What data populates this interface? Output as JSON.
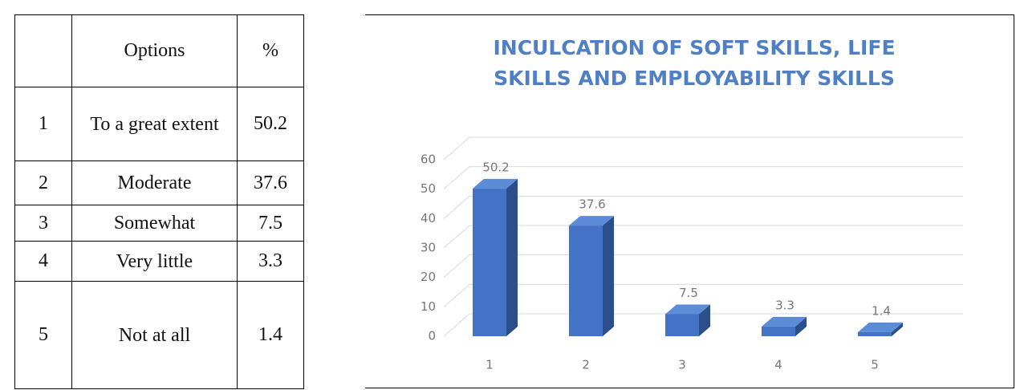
{
  "table": {
    "headers": [
      "Options",
      "%"
    ],
    "rows": [
      [
        "1",
        "To a great extent",
        50.2
      ],
      [
        "2",
        "Moderate",
        37.6
      ],
      [
        "3",
        "Somewhat",
        7.5
      ],
      [
        "4",
        "Very little",
        3.3
      ],
      [
        "5",
        "Not at all",
        1.4
      ]
    ]
  },
  "chart_data": {
    "type": "bar",
    "title": "INCULCATION OF SOFT SKILLS, LIFE SKILLS AND EMPLOYABILITY SKILLS",
    "categories": [
      "1",
      "2",
      "3",
      "4",
      "5"
    ],
    "values": [
      50.2,
      37.6,
      7.5,
      3.3,
      1.4
    ],
    "color": "#4472c4",
    "ylim": [
      0,
      60
    ],
    "yticks": [
      0,
      10,
      20,
      30,
      40,
      50,
      60
    ],
    "grid": true
  }
}
